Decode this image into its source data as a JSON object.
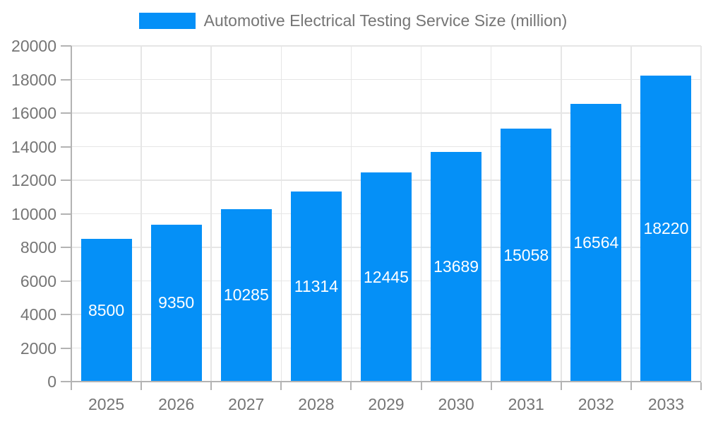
{
  "legend": {
    "label": "Automotive Electrical Testing Service Size (million)"
  },
  "colors": {
    "bar": "#0590f7",
    "bar_label": "#ffffff",
    "axis": "#b3b3b3",
    "grid": "#e6e6e6",
    "text": "#757575",
    "background": "#ffffff"
  },
  "chart_data": {
    "type": "bar",
    "title": "Automotive Electrical Testing Service Size (million)",
    "categories": [
      "2025",
      "2026",
      "2027",
      "2028",
      "2029",
      "2030",
      "2031",
      "2032",
      "2033"
    ],
    "values": [
      8500,
      9350,
      10285,
      11314,
      12445,
      13689,
      15058,
      16564,
      18220
    ],
    "value_labels": [
      "8500",
      "9350",
      "10285",
      "11314",
      "12445",
      "13689",
      "15058",
      "16564",
      "18220"
    ],
    "xlabel": "",
    "ylabel": "",
    "ylim": [
      0,
      20000
    ],
    "yticks": [
      0,
      2000,
      4000,
      6000,
      8000,
      10000,
      12000,
      14000,
      16000,
      18000,
      20000
    ],
    "grid": true,
    "legend_position": "top"
  }
}
